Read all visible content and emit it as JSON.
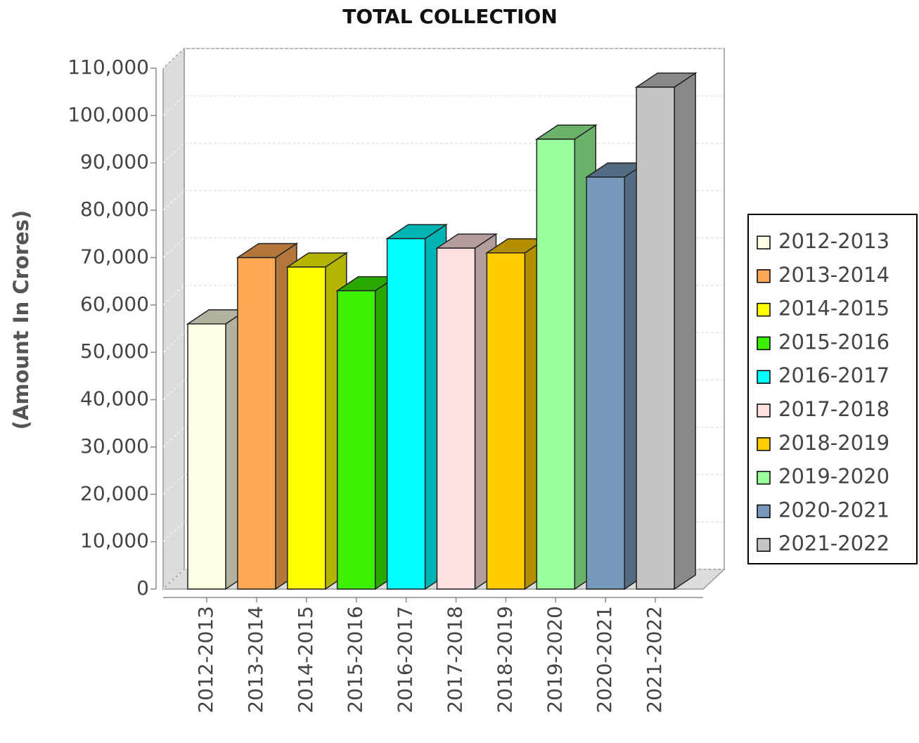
{
  "chart_data": {
    "type": "bar3d",
    "title": "TOTAL COLLECTION",
    "y_label": "(Amount In Crores)",
    "categories": [
      "2012-2013",
      "2013-2014",
      "2014-2015",
      "2015-2016",
      "2016-2017",
      "2017-2018",
      "2018-2019",
      "2019-2020",
      "2020-2021",
      "2021-2022"
    ],
    "values": [
      56000,
      70000,
      68000,
      63000,
      74000,
      72000,
      71000,
      95000,
      87000,
      106000
    ],
    "colors": [
      "#fffde4",
      "#ffa855",
      "#ffff00",
      "#3cf000",
      "#00ffff",
      "#ffe0e0",
      "#ffcc00",
      "#99ff99",
      "#7799bb",
      "#c4c4c4"
    ],
    "ylim": [
      0,
      110000
    ],
    "yticks": [
      0,
      {
        "value": 10000,
        "label": "10,000"
      },
      {
        "value": 20000,
        "label": "20,000"
      },
      {
        "value": 30000,
        "label": "30,000"
      },
      {
        "value": 40000,
        "label": "40,000"
      },
      {
        "value": 50000,
        "label": "50,000"
      },
      {
        "value": 60000,
        "label": "60,000"
      },
      {
        "value": 70000,
        "label": "70,000"
      },
      {
        "value": 80000,
        "label": "80,000"
      },
      {
        "value": 90000,
        "label": "90,000"
      },
      {
        "value": 100000,
        "label": "100,000"
      },
      {
        "value": 110000,
        "label": "110,000"
      }
    ],
    "grid": true,
    "legend": "right"
  }
}
